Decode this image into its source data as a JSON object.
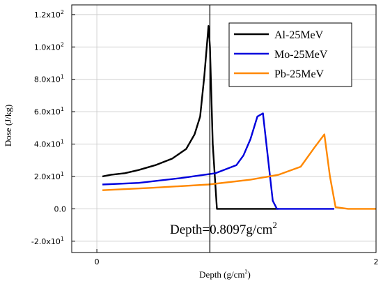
{
  "chart_data": {
    "type": "line",
    "title": "",
    "xlabel": "Depth (g/cm",
    "xlabel_sup": "2",
    "xlabel_suffix": ")",
    "ylabel": "Dose (J/kg)",
    "xlim": [
      -0.18,
      2.0
    ],
    "ylim": [
      -27,
      126
    ],
    "grid": true,
    "legend_position": "top-right",
    "x_ticks": [
      {
        "value": 0,
        "label": "0"
      },
      {
        "value": 2,
        "label": "2"
      }
    ],
    "y_ticks": [
      {
        "value": -20,
        "mantissa": "-2.0x10",
        "exp": "1"
      },
      {
        "value": 0,
        "mantissa": "0.0",
        "exp": ""
      },
      {
        "value": 20,
        "mantissa": "2.0x10",
        "exp": "1"
      },
      {
        "value": 40,
        "mantissa": "4.0x10",
        "exp": "1"
      },
      {
        "value": 60,
        "mantissa": "6.0x10",
        "exp": "1"
      },
      {
        "value": 80,
        "mantissa": "8.0x10",
        "exp": "1"
      },
      {
        "value": 100,
        "mantissa": "1.0x10",
        "exp": "2"
      },
      {
        "value": 120,
        "mantissa": "1.2x10",
        "exp": "2"
      }
    ],
    "series": [
      {
        "name": "Al-25MeV",
        "color": "#000000",
        "x": [
          0.04,
          0.1,
          0.2,
          0.3,
          0.42,
          0.54,
          0.64,
          0.7,
          0.74,
          0.77,
          0.8,
          0.81,
          0.83,
          0.86,
          1.0,
          1.3
        ],
        "y": [
          20,
          21,
          22,
          24,
          27,
          31,
          37,
          46,
          57,
          82,
          113,
          100,
          40,
          0,
          0,
          0
        ]
      },
      {
        "name": "Mo-25MeV",
        "color": "#0000dd",
        "x": [
          0.04,
          0.3,
          0.6,
          0.85,
          1.0,
          1.05,
          1.1,
          1.15,
          1.19,
          1.26,
          1.29,
          1.4,
          1.7
        ],
        "y": [
          15,
          16,
          19,
          22,
          27,
          33,
          43,
          57,
          59,
          5,
          0,
          0,
          0
        ]
      },
      {
        "name": "Pb-25MeV",
        "color": "#ff8800",
        "x": [
          0.04,
          0.4,
          0.8,
          1.1,
          1.3,
          1.46,
          1.56,
          1.63,
          1.67,
          1.71,
          1.8,
          2.0
        ],
        "y": [
          11.5,
          13,
          15,
          18,
          21,
          26,
          38,
          46,
          20,
          1,
          0,
          0
        ]
      }
    ],
    "vertical_line": {
      "x": 0.8097
    },
    "annotation": {
      "text": "Depth=0.8097g/cm",
      "sup": "2"
    }
  }
}
